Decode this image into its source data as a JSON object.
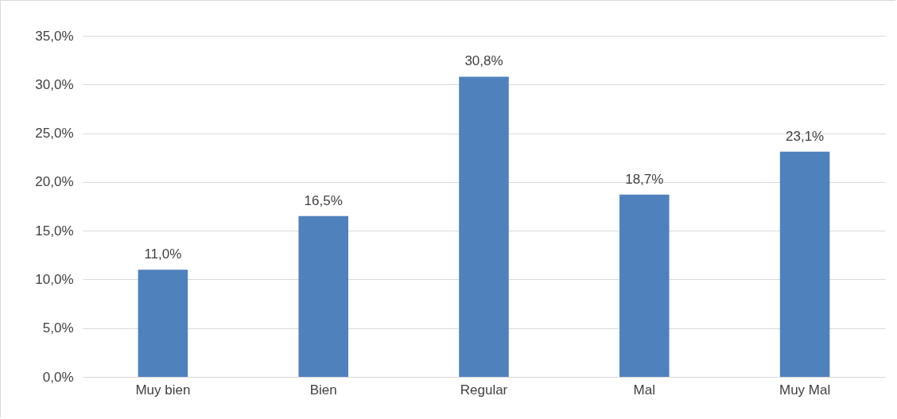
{
  "chart_data": {
    "type": "bar",
    "categories": [
      "Muy bien",
      "Bien",
      "Regular",
      "Mal",
      "Muy Mal"
    ],
    "values": [
      11.0,
      16.5,
      30.8,
      18.7,
      23.1
    ],
    "value_labels": [
      "11,0%",
      "16,5%",
      "30,8%",
      "18,7%",
      "23,1%"
    ],
    "color": "#4f81bd",
    "ylim": [
      0,
      35
    ],
    "yticks": [
      {
        "value": 0,
        "label": "0,0%"
      },
      {
        "value": 5,
        "label": "5,0%"
      },
      {
        "value": 10,
        "label": "10,0%"
      },
      {
        "value": 15,
        "label": "15,0%"
      },
      {
        "value": 20,
        "label": "20,0%"
      },
      {
        "value": 25,
        "label": "25,0%"
      },
      {
        "value": 30,
        "label": "30,0%"
      },
      {
        "value": 35,
        "label": "35,0%"
      }
    ],
    "grid": "y"
  }
}
